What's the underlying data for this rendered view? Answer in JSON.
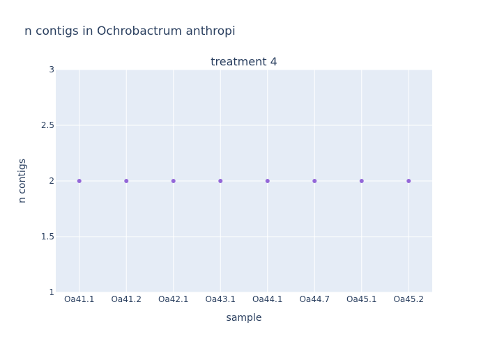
{
  "chart_data": {
    "type": "scatter",
    "title": "n contigs in Ochrobactrum anthropi",
    "subplot_title": "treatment 4",
    "xlabel": "sample",
    "ylabel": "n contigs",
    "categories": [
      "Oa41.1",
      "Oa41.2",
      "Oa42.1",
      "Oa43.1",
      "Oa44.1",
      "Oa44.7",
      "Oa45.1",
      "Oa45.2"
    ],
    "series": [
      {
        "values": [
          2,
          2,
          2,
          2,
          2,
          2,
          2,
          2
        ]
      }
    ],
    "ylim": [
      1,
      3
    ],
    "yticks": [
      1,
      1.5,
      2,
      2.5,
      3
    ],
    "ytick_labels": [
      "1",
      "1.5",
      "2",
      "2.5",
      "3"
    ],
    "grid": true,
    "colors": {
      "plot_background": "#e5ecf6",
      "grid": "#ffffff",
      "marker": "#9467d8",
      "text": "#2a3f5f"
    }
  }
}
